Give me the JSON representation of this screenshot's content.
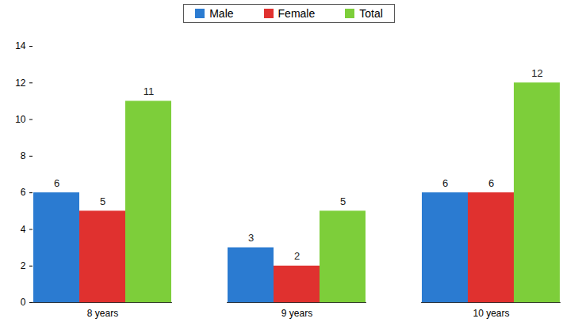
{
  "chart_data": {
    "type": "bar",
    "categories": [
      "8 years",
      "9 years",
      "10 years"
    ],
    "series": [
      {
        "name": "Male",
        "color": "#2b7bd1",
        "values": [
          6,
          3,
          6
        ]
      },
      {
        "name": "Female",
        "color": "#e0312f",
        "values": [
          5,
          2,
          6
        ]
      },
      {
        "name": "Total",
        "color": "#7dce3a",
        "values": [
          11,
          5,
          12
        ]
      }
    ],
    "ylim": [
      0,
      14
    ],
    "yticks": [
      0,
      2,
      4,
      6,
      8,
      10,
      12,
      14
    ],
    "grid": false,
    "legend": "top",
    "data_labels": true
  }
}
